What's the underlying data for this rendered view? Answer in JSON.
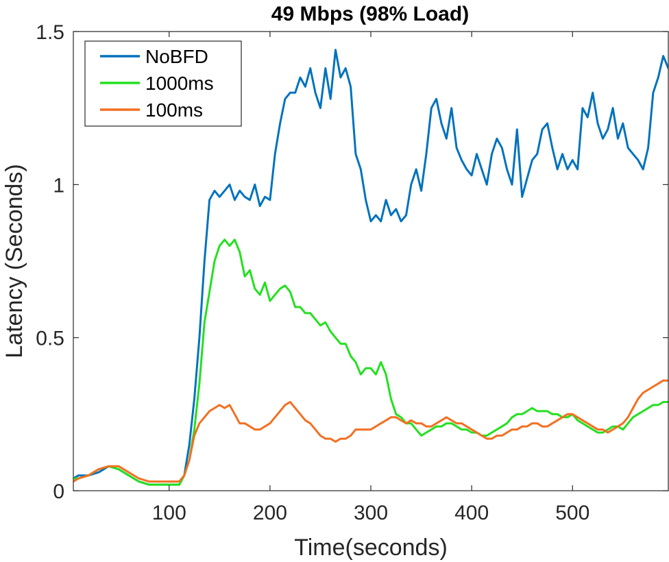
{
  "chart_data": {
    "type": "line",
    "title": "49 Mbps (98% Load)",
    "xlabel": "Time(seconds)",
    "ylabel": "Latency (Seconds)",
    "xlim": [
      5,
      595
    ],
    "ylim": [
      0,
      1.5
    ],
    "xticks": [
      100,
      200,
      300,
      400,
      500
    ],
    "xtick_labels": [
      "100",
      "200",
      "300",
      "400",
      "500"
    ],
    "yticks": [
      0,
      0.5,
      1,
      1.5
    ],
    "ytick_labels": [
      "0",
      "0.5",
      "1",
      "1.5"
    ],
    "grid": false,
    "legend_position": "top-left",
    "series": [
      {
        "name": "NoBFD",
        "color": "#0072BD",
        "x": [
          5,
          10,
          20,
          30,
          40,
          50,
          60,
          70,
          80,
          90,
          100,
          110,
          115,
          120,
          125,
          130,
          135,
          140,
          145,
          150,
          155,
          160,
          165,
          170,
          175,
          180,
          185,
          190,
          195,
          200,
          205,
          210,
          215,
          220,
          225,
          230,
          235,
          240,
          245,
          250,
          255,
          260,
          265,
          270,
          275,
          280,
          285,
          290,
          295,
          300,
          305,
          310,
          315,
          320,
          325,
          330,
          335,
          340,
          345,
          350,
          355,
          360,
          365,
          370,
          375,
          380,
          385,
          390,
          395,
          400,
          405,
          410,
          415,
          420,
          425,
          430,
          435,
          440,
          445,
          450,
          455,
          460,
          465,
          470,
          475,
          480,
          485,
          490,
          495,
          500,
          505,
          510,
          515,
          520,
          525,
          530,
          535,
          540,
          545,
          550,
          555,
          560,
          565,
          570,
          575,
          580,
          585,
          590,
          595
        ],
        "y": [
          0.04,
          0.05,
          0.05,
          0.06,
          0.08,
          0.07,
          0.05,
          0.03,
          0.02,
          0.02,
          0.02,
          0.02,
          0.05,
          0.15,
          0.3,
          0.5,
          0.75,
          0.95,
          0.98,
          0.96,
          0.98,
          1.0,
          0.95,
          0.98,
          0.96,
          0.95,
          1.0,
          0.93,
          0.96,
          0.95,
          1.1,
          1.2,
          1.28,
          1.3,
          1.3,
          1.35,
          1.32,
          1.38,
          1.3,
          1.25,
          1.38,
          1.28,
          1.44,
          1.35,
          1.38,
          1.32,
          1.1,
          1.05,
          0.95,
          0.88,
          0.9,
          0.88,
          0.95,
          0.9,
          0.92,
          0.88,
          0.9,
          1.0,
          1.05,
          0.98,
          1.1,
          1.25,
          1.28,
          1.2,
          1.15,
          1.25,
          1.12,
          1.08,
          1.05,
          1.03,
          1.1,
          1.05,
          1.0,
          1.1,
          1.15,
          1.12,
          1.05,
          1.0,
          1.18,
          0.96,
          1.02,
          1.08,
          1.1,
          1.18,
          1.2,
          1.12,
          1.05,
          1.1,
          1.05,
          1.08,
          1.05,
          1.25,
          1.22,
          1.3,
          1.2,
          1.15,
          1.18,
          1.25,
          1.15,
          1.2,
          1.12,
          1.1,
          1.08,
          1.05,
          1.12,
          1.3,
          1.35,
          1.42,
          1.38
        ]
      },
      {
        "name": "1000ms",
        "color": "#23E01F",
        "x": [
          5,
          10,
          20,
          30,
          40,
          50,
          60,
          70,
          80,
          90,
          100,
          110,
          115,
          120,
          125,
          130,
          135,
          140,
          145,
          150,
          155,
          160,
          165,
          170,
          175,
          180,
          185,
          190,
          195,
          200,
          205,
          210,
          215,
          220,
          225,
          230,
          235,
          240,
          245,
          250,
          255,
          260,
          265,
          270,
          275,
          280,
          285,
          290,
          295,
          300,
          305,
          310,
          315,
          320,
          325,
          330,
          335,
          340,
          345,
          350,
          355,
          360,
          365,
          370,
          375,
          380,
          385,
          390,
          395,
          400,
          405,
          410,
          415,
          420,
          425,
          430,
          435,
          440,
          445,
          450,
          455,
          460,
          465,
          470,
          475,
          480,
          485,
          490,
          495,
          500,
          505,
          510,
          515,
          520,
          525,
          530,
          535,
          540,
          545,
          550,
          555,
          560,
          565,
          570,
          575,
          580,
          585,
          590,
          595
        ],
        "y": [
          0.04,
          0.04,
          0.05,
          0.07,
          0.08,
          0.07,
          0.05,
          0.03,
          0.02,
          0.02,
          0.02,
          0.02,
          0.05,
          0.1,
          0.2,
          0.35,
          0.55,
          0.65,
          0.75,
          0.8,
          0.82,
          0.8,
          0.82,
          0.78,
          0.7,
          0.72,
          0.66,
          0.64,
          0.68,
          0.62,
          0.64,
          0.66,
          0.67,
          0.65,
          0.6,
          0.6,
          0.58,
          0.58,
          0.56,
          0.54,
          0.55,
          0.52,
          0.5,
          0.48,
          0.48,
          0.44,
          0.42,
          0.38,
          0.4,
          0.4,
          0.38,
          0.42,
          0.38,
          0.3,
          0.25,
          0.24,
          0.22,
          0.22,
          0.2,
          0.18,
          0.19,
          0.2,
          0.21,
          0.21,
          0.22,
          0.22,
          0.21,
          0.2,
          0.2,
          0.19,
          0.19,
          0.18,
          0.18,
          0.19,
          0.2,
          0.21,
          0.22,
          0.24,
          0.25,
          0.25,
          0.26,
          0.27,
          0.26,
          0.26,
          0.26,
          0.25,
          0.25,
          0.24,
          0.24,
          0.25,
          0.23,
          0.22,
          0.21,
          0.2,
          0.19,
          0.19,
          0.2,
          0.21,
          0.21,
          0.2,
          0.22,
          0.24,
          0.25,
          0.26,
          0.27,
          0.28,
          0.28,
          0.29,
          0.29
        ]
      },
      {
        "name": "100ms",
        "color": "#F36F21",
        "x": [
          5,
          10,
          20,
          30,
          40,
          50,
          60,
          70,
          80,
          90,
          100,
          110,
          115,
          120,
          125,
          130,
          135,
          140,
          145,
          150,
          155,
          160,
          165,
          170,
          175,
          180,
          185,
          190,
          195,
          200,
          205,
          210,
          215,
          220,
          225,
          230,
          235,
          240,
          245,
          250,
          255,
          260,
          265,
          270,
          275,
          280,
          285,
          290,
          295,
          300,
          305,
          310,
          315,
          320,
          325,
          330,
          335,
          340,
          345,
          350,
          355,
          360,
          365,
          370,
          375,
          380,
          385,
          390,
          395,
          400,
          405,
          410,
          415,
          420,
          425,
          430,
          435,
          440,
          445,
          450,
          455,
          460,
          465,
          470,
          475,
          480,
          485,
          490,
          495,
          500,
          505,
          510,
          515,
          520,
          525,
          530,
          535,
          540,
          545,
          550,
          555,
          560,
          565,
          570,
          575,
          580,
          585,
          590,
          595
        ],
        "y": [
          0.03,
          0.04,
          0.05,
          0.07,
          0.08,
          0.08,
          0.06,
          0.04,
          0.03,
          0.03,
          0.03,
          0.03,
          0.05,
          0.1,
          0.18,
          0.22,
          0.24,
          0.26,
          0.27,
          0.28,
          0.27,
          0.28,
          0.25,
          0.22,
          0.22,
          0.21,
          0.2,
          0.2,
          0.21,
          0.22,
          0.24,
          0.26,
          0.28,
          0.29,
          0.27,
          0.25,
          0.23,
          0.22,
          0.2,
          0.18,
          0.17,
          0.17,
          0.16,
          0.17,
          0.17,
          0.18,
          0.2,
          0.2,
          0.2,
          0.2,
          0.21,
          0.22,
          0.23,
          0.24,
          0.24,
          0.23,
          0.22,
          0.23,
          0.22,
          0.22,
          0.21,
          0.21,
          0.22,
          0.23,
          0.24,
          0.23,
          0.22,
          0.22,
          0.21,
          0.2,
          0.19,
          0.18,
          0.17,
          0.17,
          0.18,
          0.18,
          0.19,
          0.2,
          0.2,
          0.21,
          0.21,
          0.22,
          0.22,
          0.21,
          0.21,
          0.22,
          0.23,
          0.24,
          0.25,
          0.25,
          0.24,
          0.23,
          0.22,
          0.21,
          0.2,
          0.2,
          0.19,
          0.2,
          0.21,
          0.22,
          0.24,
          0.27,
          0.3,
          0.32,
          0.33,
          0.34,
          0.35,
          0.36,
          0.36
        ]
      }
    ]
  }
}
